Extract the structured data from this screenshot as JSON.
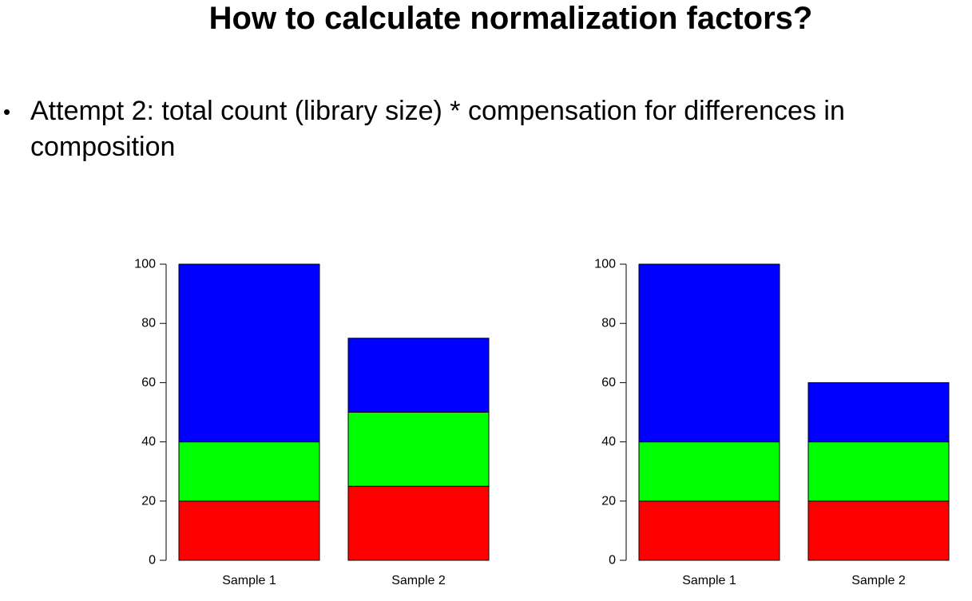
{
  "slide": {
    "title": "How to calculate normalization factors?",
    "bullet_marker": "•",
    "bullet_text": "Attempt 2: total count (library size) * compensation for differences in composition"
  },
  "colors": {
    "red": "#ff0000",
    "green": "#00ff00",
    "blue": "#0000ff",
    "outline": "#000000"
  },
  "chart_data": [
    {
      "type": "bar",
      "stacked": true,
      "categories": [
        "Sample 1",
        "Sample 2"
      ],
      "series": [
        {
          "color": "#ff0000",
          "values": [
            20,
            25
          ]
        },
        {
          "color": "#00ff00",
          "values": [
            20,
            25
          ]
        },
        {
          "color": "#0000ff",
          "values": [
            60,
            25
          ]
        }
      ],
      "ylim": [
        0,
        100
      ],
      "yticks": [
        0,
        20,
        40,
        60,
        80,
        100
      ],
      "grid": false,
      "xlabel": "",
      "ylabel": ""
    },
    {
      "type": "bar",
      "stacked": true,
      "categories": [
        "Sample 1",
        "Sample 2"
      ],
      "series": [
        {
          "color": "#ff0000",
          "values": [
            20,
            20
          ]
        },
        {
          "color": "#00ff00",
          "values": [
            20,
            20
          ]
        },
        {
          "color": "#0000ff",
          "values": [
            60,
            20
          ]
        }
      ],
      "ylim": [
        0,
        100
      ],
      "yticks": [
        0,
        20,
        40,
        60,
        80,
        100
      ],
      "grid": false,
      "xlabel": "",
      "ylabel": ""
    }
  ]
}
